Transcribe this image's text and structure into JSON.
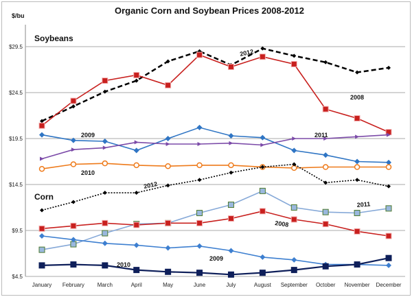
{
  "chart_data": {
    "type": "line",
    "title": "Organic Corn and Soybean Prices 2008-2012",
    "ylabel": "$/bu",
    "xlabel": "",
    "ylim": [
      4.5,
      31.5
    ],
    "yticks": [
      4.5,
      9.5,
      14.5,
      19.5,
      24.5,
      29.5
    ],
    "ytick_labels": [
      "$4.5",
      "$9.5",
      "$14.5",
      "$19.5",
      "$24.5",
      "$29.5"
    ],
    "grid": true,
    "section_labels": [
      "Soybeans",
      "Corn"
    ],
    "categories": [
      "January",
      "February",
      "March",
      "April",
      "May",
      "June",
      "July",
      "August",
      "September",
      "October",
      "November",
      "December"
    ],
    "series": [
      {
        "name": "2012",
        "group": "Soybeans",
        "color": "#000000",
        "style": "dashed",
        "values": [
          21.4,
          23.0,
          24.6,
          25.8,
          27.9,
          29.0,
          27.5,
          29.3,
          28.5,
          27.8,
          26.7,
          27.2
        ]
      },
      {
        "name": "2008",
        "group": "Soybeans",
        "color": "#c8201e",
        "style": "solid-square",
        "values": [
          20.9,
          23.6,
          25.8,
          26.4,
          25.3,
          28.6,
          27.3,
          28.4,
          27.6,
          22.7,
          21.7,
          20.2
        ]
      },
      {
        "name": "2009",
        "group": "Soybeans",
        "color": "#2f75c4",
        "style": "solid-diamond",
        "values": [
          19.9,
          19.3,
          19.2,
          18.2,
          19.5,
          20.7,
          19.8,
          19.6,
          18.2,
          17.7,
          17.0,
          16.9
        ]
      },
      {
        "name": "2011",
        "group": "Soybeans",
        "color": "#7b4aa8",
        "style": "solid-tri",
        "values": [
          17.3,
          18.3,
          18.5,
          19.1,
          18.9,
          18.9,
          19.0,
          18.8,
          19.5,
          19.5,
          19.7,
          19.9
        ]
      },
      {
        "name": "2010",
        "group": "Soybeans",
        "color": "#ee7a1a",
        "style": "solid-circle",
        "values": [
          16.2,
          16.7,
          16.8,
          16.6,
          16.5,
          16.6,
          16.6,
          16.4,
          16.3,
          16.4,
          16.4,
          16.4
        ]
      },
      {
        "name": "2012",
        "group": "Corn",
        "color": "#000000",
        "style": "dotted",
        "values": [
          11.7,
          12.6,
          13.6,
          13.6,
          14.4,
          15.0,
          15.8,
          16.4,
          16.7,
          14.7,
          15.0,
          14.3
        ]
      },
      {
        "name": "2011",
        "group": "Corn",
        "color": "#86a9d8",
        "style": "solid-square-green",
        "values": [
          7.4,
          8.0,
          9.2,
          10.2,
          10.3,
          11.4,
          12.3,
          13.8,
          12.0,
          11.5,
          11.4,
          11.9
        ]
      },
      {
        "name": "2008",
        "group": "Corn",
        "color": "#c8201e",
        "style": "solid-square",
        "values": [
          9.7,
          10.0,
          10.3,
          10.1,
          10.3,
          10.3,
          10.8,
          11.6,
          10.7,
          10.2,
          9.4,
          8.9
        ]
      },
      {
        "name": "2009",
        "group": "Corn",
        "color": "#3d7fd0",
        "style": "solid-diamond",
        "values": [
          8.9,
          8.5,
          8.1,
          7.9,
          7.6,
          7.8,
          7.3,
          6.6,
          6.3,
          5.8,
          5.8,
          5.7
        ]
      },
      {
        "name": "2010",
        "group": "Corn",
        "color": "#0e1f5a",
        "style": "solid-square",
        "values": [
          5.7,
          5.8,
          5.7,
          5.2,
          5.0,
          4.9,
          4.7,
          4.9,
          5.2,
          5.6,
          5.8,
          6.5
        ]
      }
    ]
  }
}
